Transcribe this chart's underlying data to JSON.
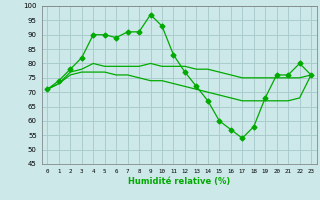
{
  "xlabel": "Humidité relative (%)",
  "background_color": "#cce8e8",
  "grid_color": "#aacccc",
  "line_color": "#00aa00",
  "ylim": [
    45,
    100
  ],
  "yticks": [
    45,
    50,
    55,
    60,
    65,
    70,
    75,
    80,
    85,
    90,
    95,
    100
  ],
  "xlim": [
    -0.5,
    23.5
  ],
  "xticks": [
    0,
    1,
    2,
    3,
    4,
    5,
    6,
    7,
    8,
    9,
    10,
    11,
    12,
    13,
    14,
    15,
    16,
    17,
    18,
    19,
    20,
    21,
    22,
    23
  ],
  "series": [
    {
      "x": [
        0,
        1,
        2,
        3,
        4,
        5,
        6,
        7,
        8,
        9,
        10,
        11,
        12,
        13,
        14,
        15,
        16,
        17,
        18,
        19,
        20,
        21,
        22,
        23
      ],
      "y": [
        71,
        74,
        78,
        82,
        90,
        90,
        89,
        91,
        91,
        97,
        93,
        83,
        77,
        72,
        67,
        60,
        57,
        54,
        58,
        68,
        76,
        76,
        80,
        76
      ],
      "marker": "D",
      "markersize": 2.5
    },
    {
      "x": [
        0,
        1,
        2,
        3,
        4,
        5,
        6,
        7,
        8,
        9,
        10,
        11,
        12,
        13,
        14,
        15,
        16,
        17,
        18,
        19,
        20,
        21,
        22,
        23
      ],
      "y": [
        71,
        73,
        77,
        78,
        80,
        79,
        79,
        79,
        79,
        80,
        79,
        79,
        79,
        78,
        78,
        77,
        76,
        75,
        75,
        75,
        75,
        75,
        75,
        76
      ],
      "marker": null,
      "markersize": 0
    },
    {
      "x": [
        0,
        1,
        2,
        3,
        4,
        5,
        6,
        7,
        8,
        9,
        10,
        11,
        12,
        13,
        14,
        15,
        16,
        17,
        18,
        19,
        20,
        21,
        22,
        23
      ],
      "y": [
        71,
        73,
        76,
        77,
        77,
        77,
        76,
        76,
        75,
        74,
        74,
        73,
        72,
        71,
        70,
        69,
        68,
        67,
        67,
        67,
        67,
        67,
        68,
        76
      ],
      "marker": null,
      "markersize": 0
    }
  ]
}
